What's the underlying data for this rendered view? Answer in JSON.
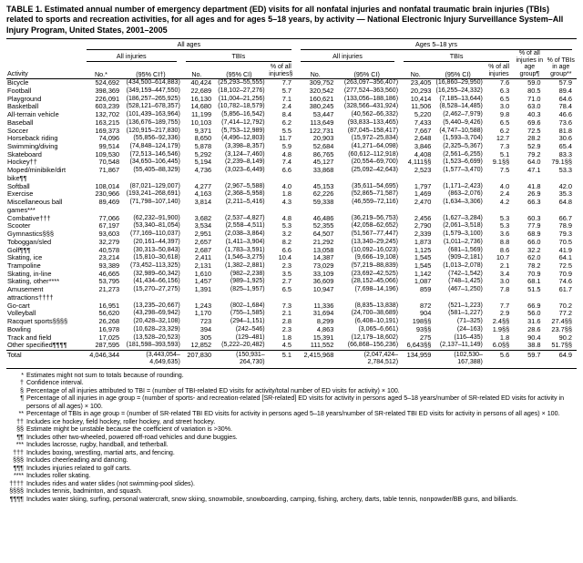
{
  "title": "TABLE 1. Estimated annual number of emergency department (ED) visits for all nonfatal injuries and nonfatal traumatic brain injuries (TBIs) related to sports and recreation activities, for all ages and for ages 5–18 years, by activity — National Electronic Injury Surveillance System–All Injury Program, United States, 2001–2005",
  "header": {
    "col_activity": "Activity",
    "group_all_ages": "All ages",
    "group_ages_5_18": "Ages 5–18 yrs",
    "sub_all_injuries": "All injuries",
    "sub_tbis": "TBIs",
    "col_no_star": "No.*",
    "col_ci_dagger": "(95% CI†)",
    "col_no": "No.",
    "col_ci": "(95% CI)",
    "col_pct_all_injuries_section": "% of all injuries§",
    "col_pct_all_injuries": "% of all injuries",
    "col_pct_injuries_age_group": "% of all injuries in age group¶",
    "col_pct_tbis_age_group": "% of TBIs in age group**"
  },
  "rows": [
    [
      "Bicycle",
      "524,692",
      "(434,500–614,883)",
      "40,424",
      "(25,293–55,555)",
      "7.7",
      "309,752",
      "(263,097–356,407)",
      "23,405",
      "(16,860–29,950)",
      "7.6",
      "59.0",
      "57.9"
    ],
    [
      "Football",
      "398,369",
      "(349,159–447,550)",
      "22,689",
      "(18,102–27,276)",
      "5.7",
      "320,542",
      "(277,524–363,560)",
      "20,293",
      "(16,255–24,332)",
      "6.3",
      "80.5",
      "89.4"
    ],
    [
      "Playground",
      "226,091",
      "(186,257–265,925)",
      "16,130",
      "(11,004–21,256)",
      "7.1",
      "160,621",
      "(133,056–188,186)",
      "10,414",
      "(7,185–13,644)",
      "6.5",
      "71.0",
      "64.6"
    ],
    [
      "Basketball",
      "603,239",
      "(528,121–678,357)",
      "14,680",
      "(10,782–18,579)",
      "2.4",
      "380,245",
      "(328,566–431,924)",
      "11,506",
      "(8,528–14,485)",
      "3.0",
      "63.0",
      "78.4"
    ],
    [
      "All-terrain vehicle",
      "132,702",
      "(101,439–163,964)",
      "11,199",
      "(5,856–16,542)",
      "8.4",
      "53,447",
      "(40,562–66,332)",
      "5,220",
      "(2,462–7,979)",
      "9.8",
      "40.3",
      "46.6"
    ],
    [
      "Baseball",
      "163,215",
      "(136,676–189,755)",
      "10,103",
      "(7,414–12,792)",
      "6.2",
      "113,649",
      "(93,833–133,465)",
      "7,433",
      "(5,440–9,426)",
      "6.5",
      "69.6",
      "73.6"
    ],
    [
      "Soccer",
      "169,373",
      "(120,915–217,830)",
      "9,371",
      "(5,753–12,989)",
      "5.5",
      "122,731",
      "(87,045–158,417)",
      "7,667",
      "(4,747–10,588)",
      "6.2",
      "72.5",
      "81.8"
    ],
    [
      "Horseback riding",
      "74,096",
      "(55,856–92,336)",
      "8,650",
      "(4,496–12,803)",
      "11.7",
      "20,903",
      "(15,972–25,834)",
      "2,648",
      "(1,593–3,704)",
      "12.7",
      "28.2",
      "30.6"
    ],
    [
      "Swimming/diving",
      "99,514",
      "(74,848–124,179)",
      "5,878",
      "(3,398–8,357)",
      "5.9",
      "52,684",
      "(41,271–64,098)",
      "3,846",
      "(2,325–5,367)",
      "7.3",
      "52.9",
      "65.4"
    ],
    [
      "Skateboard",
      "109,530",
      "(72,513–146,546)",
      "5,292",
      "(3,124–7,460)",
      "4.8",
      "86,765",
      "(60,612–112,918)",
      "4,408",
      "(2,561–6,255)",
      "5.1",
      "79.2",
      "83.3"
    ],
    [
      "Hockey††",
      "70,548",
      "(34,650–106,445)",
      "5,194",
      "(2,239–8,149)",
      "7.4",
      "45,127",
      "(20,554–69,700)",
      "4,111§§",
      "(1,523–6,699)",
      "9.1§§",
      "64.0",
      "79.1§§"
    ],
    [
      "Moped/minibike/dirt bike¶¶",
      "71,867",
      "(55,405–88,329)",
      "4,736",
      "(3,023–6,449)",
      "6.6",
      "33,868",
      "(25,092–42,643)",
      "2,523",
      "(1,577–3,470)",
      "7.5",
      "47.1",
      "53.3"
    ],
    [
      "Softball",
      "108,014",
      "(87,021–129,007)",
      "4,277",
      "(2,967–5,588)",
      "4.0",
      "45,153",
      "(35,611–54,695)",
      "1,797",
      "(1,171–2,423)",
      "4.0",
      "41.8",
      "42.0"
    ],
    [
      "Exercise",
      "230,966",
      "(193,241–268,691)",
      "4,163",
      "(2,368–5,958)",
      "1.8",
      "62,226",
      "(52,865–71,587)",
      "1,469",
      "(863–2,076)",
      "2.4",
      "26.9",
      "35.3"
    ],
    [
      "Miscellaneous ball games***",
      "89,469",
      "(71,798–107,140)",
      "3,814",
      "(2,211–5,416)",
      "4.3",
      "59,338",
      "(46,559–72,116)",
      "2,470",
      "(1,634–3,306)",
      "4.2",
      "66.3",
      "64.8"
    ],
    [
      "Combative†††",
      "77,066",
      "(62,232–91,900)",
      "3,682",
      "(2,537–4,827)",
      "4.8",
      "46,486",
      "(36,219–56,753)",
      "2,456",
      "(1,627–3,284)",
      "5.3",
      "60.3",
      "66.7"
    ],
    [
      "Scooter",
      "67,197",
      "(53,340–81,054)",
      "3,534",
      "(2,558–4,511)",
      "5.3",
      "52,355",
      "(42,058–62,652)",
      "2,790",
      "(2,061–3,518)",
      "5.3",
      "77.9",
      "78.9"
    ],
    [
      "Gymnastics§§§",
      "93,603",
      "(77,169–110,037)",
      "2,951",
      "(2,038–3,864)",
      "3.2",
      "64,507",
      "(51,567–77,447)",
      "2,339",
      "(1,579–3,100)",
      "3.6",
      "68.9",
      "79.3"
    ],
    [
      "Toboggan/sled",
      "32,279",
      "(20,161–44,397)",
      "2,657",
      "(1,411–3,904)",
      "8.2",
      "21,292",
      "(13,340–29,245)",
      "1,873",
      "(1,011–2,736)",
      "8.8",
      "66.0",
      "70.5"
    ],
    [
      "Golf¶¶¶",
      "40,578",
      "(30,313–50,843)",
      "2,687",
      "(1,783–3,591)",
      "6.6",
      "13,058",
      "(10,092–16,023)",
      "1,125",
      "(681–1,569)",
      "8.6",
      "32.2",
      "41.9"
    ],
    [
      "Skating, ice",
      "23,214",
      "(15,810–30,618)",
      "2,411",
      "(1,546–3,275)",
      "10.4",
      "14,387",
      "(9,666–19,108)",
      "1,545",
      "(909–2,181)",
      "10.7",
      "62.0",
      "64.1"
    ],
    [
      "Trampoline",
      "93,389",
      "(73,452–113,325)",
      "2,131",
      "(1,382–2,881)",
      "2.3",
      "73,029",
      "(57,219–88,839)",
      "1,545",
      "(1,013–2,078)",
      "2.1",
      "78.2",
      "72.5"
    ],
    [
      "Skating, in-line",
      "46,665",
      "(32,989–60,342)",
      "1,610",
      "(982–2,238)",
      "3.5",
      "33,109",
      "(23,692–42,525)",
      "1,142",
      "(742–1,542)",
      "3.4",
      "70.9",
      "70.9"
    ],
    [
      "Skating, other****",
      "53,795",
      "(41,434–66,156)",
      "1,457",
      "(989–1,925)",
      "2.7",
      "36,609",
      "(28,152–45,066)",
      "1,087",
      "(748–1,425)",
      "3.0",
      "68.1",
      "74.6"
    ],
    [
      "Amusement attractions††††",
      "21,273",
      "(15,270–27,275)",
      "1,391",
      "(825–1,957)",
      "6.5",
      "10,947",
      "(7,698–14,196)",
      "859",
      "(467–1,250)",
      "7.8",
      "51.5",
      "61.7"
    ],
    [
      "Go-cart",
      "16,951",
      "(13,235–20,667)",
      "1,243",
      "(802–1,684)",
      "7.3",
      "11,336",
      "(8,835–13,838)",
      "872",
      "(521–1,223)",
      "7.7",
      "66.9",
      "70.2"
    ],
    [
      "Volleyball",
      "56,620",
      "(43,298–69,942)",
      "1,170",
      "(755–1,585)",
      "2.1",
      "31,694",
      "(24,700–38,689)",
      "904",
      "(581–1,227)",
      "2.9",
      "56.0",
      "77.2"
    ],
    [
      "Racquet sports§§§§",
      "26,268",
      "(20,428–32,108)",
      "723",
      "(294–1,151)",
      "2.8",
      "8,299",
      "(6,408–10,191)",
      "198§§",
      "(71–325)",
      "2.4§§",
      "31.6",
      "27.4§§"
    ],
    [
      "Bowling",
      "16,978",
      "(10,628–23,329)",
      "394",
      "(242–546)",
      "2.3",
      "4,863",
      "(3,065–6,661)",
      "93§§",
      "(24–163)",
      "1.9§§",
      "28.6",
      "23.7§§"
    ],
    [
      "Track and field",
      "17,025",
      "(13,528–20,523)",
      "305",
      "(129–481)",
      "1.8",
      "15,391",
      "(12,179–18,602)",
      "275",
      "(116–435)",
      "1.8",
      "90.4",
      "90.2"
    ],
    [
      "Other specified¶¶¶¶",
      "287,595",
      "(181,598–393,593)",
      "12,852",
      "(5,222–20,482)",
      "4.5",
      "111,552",
      "(66,868–156,236)",
      "6,643§§",
      "(2,137–11,149)",
      "6.0§§",
      "38.8",
      "51.7§§"
    ]
  ],
  "total_row": [
    "Total",
    "4,046,344",
    "(3,443,054– 4,649,635)",
    "207,830",
    "(150,931– 264,730)",
    "5.1",
    "2,415,968",
    "(2,047,424– 2,784,512)",
    "134,959",
    "(102,530– 167,388)",
    "5.6",
    "59.7",
    "64.9"
  ],
  "footnotes": [
    {
      "mark": "*",
      "text": "Estimates might not sum to totals because of rounding."
    },
    {
      "mark": "†",
      "text": "Confidence interval."
    },
    {
      "mark": "§",
      "text": "Percentage of all injuries attributed to TBI = (number of TBI-related ED visits for activity/total number of ED visits for activity) × 100."
    },
    {
      "mark": "¶",
      "text": "Percentage of all injuries in age group = (number of sports- and recreation-related [SR-related] ED visits for activity in persons aged 5–18 years/number of SR-related ED visits for activity in persons of all ages) × 100."
    },
    {
      "mark": "**",
      "text": "Percentage of TBIs in age group = (number of SR-related TBI ED visits for activity in persons aged 5–18 years/number of SR-related TBI ED visits for activity in persons of all ages) × 100."
    },
    {
      "mark": "††",
      "text": "Includes ice hockey, field hockey, roller hockey, and street hockey."
    },
    {
      "mark": "§§",
      "text": "Estimate might be unstable because the coefficient of variation is >30%."
    },
    {
      "mark": "¶¶",
      "text": "Includes other two-wheeled, powered off-road vehicles and dune buggies."
    },
    {
      "mark": "***",
      "text": "Includes lacrosse, rugby, handball, and tetherball."
    },
    {
      "mark": "†††",
      "text": "Includes boxing, wrestling, martial arts, and fencing."
    },
    {
      "mark": "§§§",
      "text": "Includes cheerleading and dancing."
    },
    {
      "mark": "¶¶¶",
      "text": "Includes injuries related to golf carts."
    },
    {
      "mark": "****",
      "text": "Includes roller skating."
    },
    {
      "mark": "††††",
      "text": "Includes rides and water slides (not swimming-pool slides)."
    },
    {
      "mark": "§§§§",
      "text": "Includes tennis, badminton, and squash."
    },
    {
      "mark": "¶¶¶¶",
      "text": "Includes water skiing, surfing, personal watercraft, snow skiing, snowmobile, snowboarding, camping, fishing, archery, darts, table tennis, nonpowder/BB guns, and billiards."
    }
  ]
}
